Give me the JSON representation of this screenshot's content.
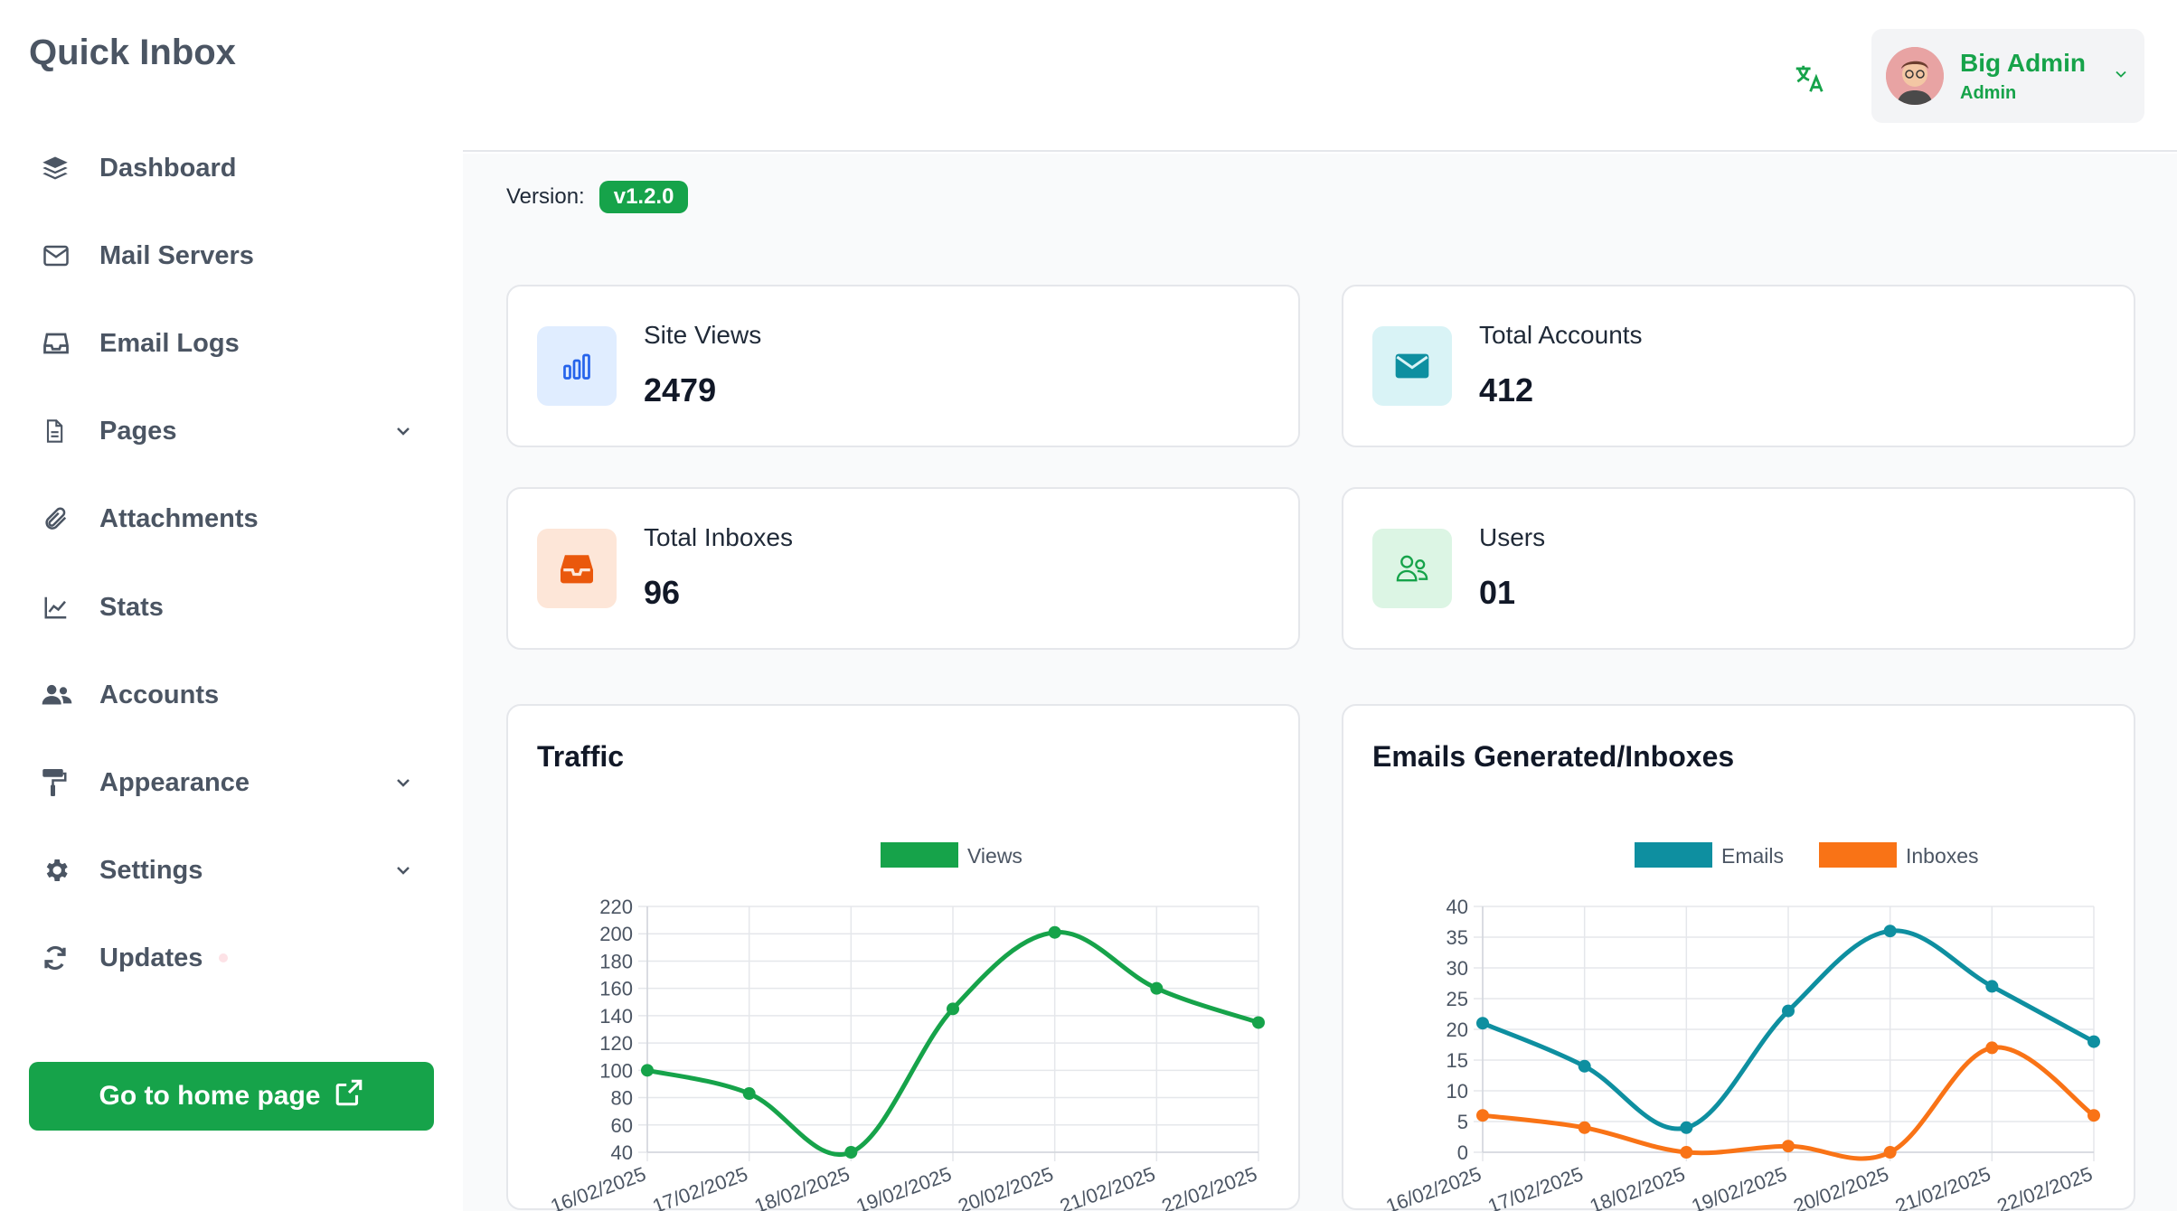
{
  "sidebar": {
    "brand": "Quick Inbox",
    "items": [
      {
        "label": "Dashboard",
        "icon": "layers-icon"
      },
      {
        "label": "Mail Servers",
        "icon": "envelope-icon"
      },
      {
        "label": "Email Logs",
        "icon": "inbox-tray-icon"
      },
      {
        "label": "Pages",
        "icon": "document-icon",
        "has_submenu": true
      },
      {
        "label": "Attachments",
        "icon": "paperclip-icon"
      },
      {
        "label": "Stats",
        "icon": "line-chart-icon"
      },
      {
        "label": "Accounts",
        "icon": "users-icon"
      },
      {
        "label": "Appearance",
        "icon": "paint-roller-icon",
        "has_submenu": true
      },
      {
        "label": "Settings",
        "icon": "gear-icon",
        "has_submenu": true
      },
      {
        "label": "Updates",
        "icon": "refresh-icon"
      }
    ],
    "home_button": "Go to home page"
  },
  "header": {
    "user_name": "Big Admin",
    "user_role": "Admin"
  },
  "main": {
    "version_label": "Version:",
    "version_value": "v1.2.0",
    "stats": [
      {
        "label": "Site Views",
        "value": "2479",
        "icon": "bar-chart-icon",
        "color": "#2563eb",
        "bg": "#e0edff"
      },
      {
        "label": "Total Accounts",
        "value": "412",
        "icon": "envelope-icon",
        "color": "#0e8fa0",
        "bg": "#d9f3f6"
      },
      {
        "label": "Total Inboxes",
        "value": "96",
        "icon": "inbox-tray-icon",
        "color": "#ea580c",
        "bg": "#fde6d8"
      },
      {
        "label": "Users",
        "value": "01",
        "icon": "users-icon",
        "color": "#16a34a",
        "bg": "#dcf5e4"
      }
    ]
  },
  "colors": {
    "accent": "#16a34a",
    "emails": "#0e8fa0",
    "inboxes": "#f97316"
  },
  "chart_data": [
    {
      "type": "line",
      "title": "Traffic",
      "x": [
        "16/02/2025",
        "17/02/2025",
        "18/02/2025",
        "19/02/2025",
        "20/02/2025",
        "21/02/2025",
        "22/02/2025"
      ],
      "series": [
        {
          "name": "Views",
          "values": [
            100,
            83,
            40,
            145,
            201,
            160,
            135
          ],
          "color": "#16a34a"
        }
      ],
      "ylim": [
        40,
        220
      ],
      "yticks": [
        40,
        60,
        80,
        100,
        120,
        140,
        160,
        180,
        200,
        220
      ],
      "legend": "top-center",
      "grid": true
    },
    {
      "type": "line",
      "title": "Emails Generated/Inboxes",
      "x": [
        "16/02/2025",
        "17/02/2025",
        "18/02/2025",
        "19/02/2025",
        "20/02/2025",
        "21/02/2025",
        "22/02/2025"
      ],
      "series": [
        {
          "name": "Emails",
          "values": [
            21,
            14,
            4,
            23,
            36,
            27,
            18
          ],
          "color": "#0e8fa0"
        },
        {
          "name": "Inboxes",
          "values": [
            6,
            4,
            0,
            1,
            0,
            17,
            6
          ],
          "color": "#f97316"
        }
      ],
      "ylim": [
        0,
        40
      ],
      "yticks": [
        0,
        5,
        10,
        15,
        20,
        25,
        30,
        35,
        40
      ],
      "legend": "top-center",
      "grid": true
    }
  ]
}
